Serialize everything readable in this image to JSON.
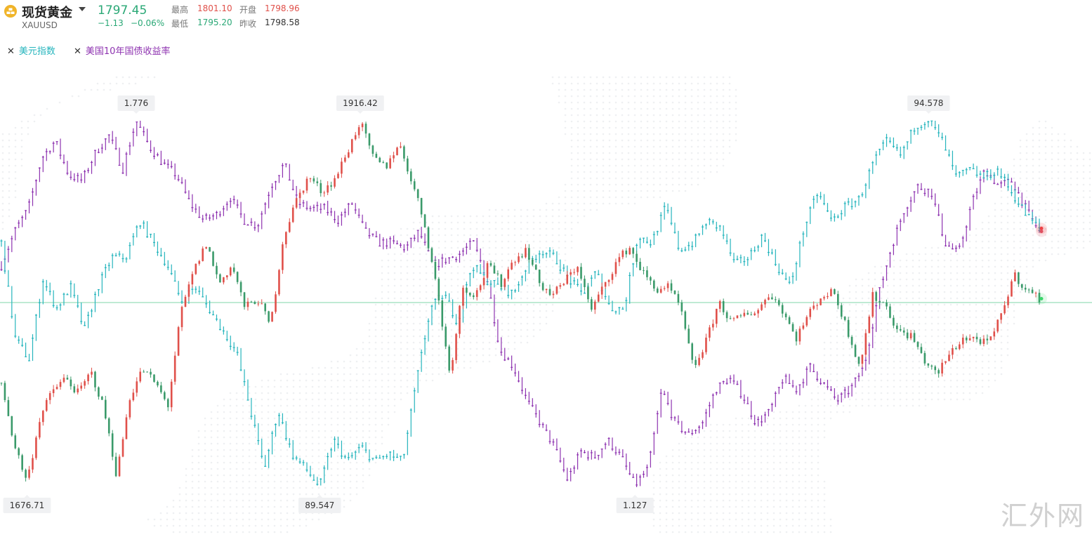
{
  "header": {
    "name": "现货黄金",
    "code": "XAUUSD",
    "price": "1797.45",
    "change": "−1.13",
    "change_pct": "−0.06%",
    "high_label": "最高",
    "high": "1801.10",
    "open_label": "开盘",
    "open": "1798.96",
    "low_label": "最低",
    "low": "1795.20",
    "prev_close_label": "昨收",
    "prev_close": "1798.58"
  },
  "legend": {
    "usd_index": "美元指数",
    "us10y": "美国10年国债收益率"
  },
  "annotations": {
    "bond_high": "1.776",
    "gold_high": "1916.42",
    "usd_high": "94.578",
    "gold_low": "1676.71",
    "usd_low": "89.547",
    "bond_low": "1.127"
  },
  "watermark": "汇外网",
  "colors": {
    "usd": "#26b5bd",
    "bond": "#8e33b0",
    "gold_up": "#e0504a",
    "gold_down": "#3a9a6a",
    "ref_line": "#7fd6a8"
  },
  "chart_data": {
    "type": "line",
    "series": [
      {
        "name": "现货黄金",
        "style": "candlestick",
        "range": [
          1676.71,
          1916.42
        ],
        "values": [
          1745,
          1705,
          1680,
          1722,
          1740,
          1748,
          1738,
          1752,
          1728,
          1684,
          1735,
          1754,
          1745,
          1730,
          1790,
          1818,
          1836,
          1810,
          1822,
          1794,
          1800,
          1782,
          1840,
          1864,
          1880,
          1870,
          1878,
          1896,
          1916,
          1892,
          1886,
          1902,
          1878,
          1850,
          1806,
          1750,
          1808,
          1802,
          1822,
          1810,
          1826,
          1832,
          1810,
          1802,
          1812,
          1822,
          1792,
          1808,
          1824,
          1834,
          1818,
          1806,
          1808,
          1794,
          1754,
          1772,
          1798,
          1784,
          1790,
          1792,
          1804,
          1792,
          1774,
          1790,
          1802,
          1804,
          1780,
          1756,
          1802,
          1796,
          1778,
          1776,
          1760,
          1750,
          1764,
          1774,
          1774,
          1770,
          1788,
          1816,
          1806,
          1800
        ]
      },
      {
        "name": "美元指数",
        "range": [
          89.547,
          94.578
        ],
        "values": [
          92.9,
          91.6,
          91.3,
          92.4,
          92.0,
          92.3,
          91.7,
          92.3,
          92.7,
          92.7,
          93.2,
          92.9,
          92.6,
          92.1,
          92.3,
          92.0,
          91.7,
          91.4,
          90.6,
          89.8,
          90.6,
          90.0,
          89.8,
          89.55,
          90.2,
          89.9,
          90.1,
          89.9,
          90.0,
          89.9,
          91.0,
          92.0,
          92.2,
          91.8,
          92.6,
          92.4,
          92.3,
          92.2,
          92.6,
          92.8,
          92.7,
          92.4,
          92.2,
          92.5,
          92.0,
          92.0,
          93.0,
          92.9,
          93.4,
          92.8,
          92.9,
          93.2,
          93.1,
          92.6,
          92.7,
          93.0,
          92.6,
          92.3,
          93.1,
          93.6,
          93.2,
          93.4,
          93.5,
          94.0,
          94.3,
          94.1,
          94.5,
          94.6,
          94.3,
          93.8,
          93.9,
          93.8,
          93.9,
          93.6,
          93.3,
          93.1
        ]
      },
      {
        "name": "美国10年国债收益率",
        "range": [
          1.127,
          1.776
        ],
        "values": [
          1.52,
          1.58,
          1.62,
          1.71,
          1.74,
          1.68,
          1.67,
          1.72,
          1.75,
          1.69,
          1.776,
          1.73,
          1.7,
          1.68,
          1.63,
          1.6,
          1.61,
          1.64,
          1.6,
          1.59,
          1.66,
          1.7,
          1.63,
          1.62,
          1.62,
          1.6,
          1.63,
          1.58,
          1.56,
          1.56,
          1.55,
          1.58,
          1.52,
          1.53,
          1.54,
          1.56,
          1.5,
          1.37,
          1.34,
          1.28,
          1.24,
          1.2,
          1.14,
          1.19,
          1.18,
          1.21,
          1.18,
          1.13,
          1.16,
          1.3,
          1.24,
          1.22,
          1.24,
          1.3,
          1.32,
          1.29,
          1.24,
          1.26,
          1.32,
          1.3,
          1.34,
          1.31,
          1.28,
          1.3,
          1.34,
          1.46,
          1.55,
          1.62,
          1.66,
          1.65,
          1.56,
          1.54,
          1.63,
          1.69,
          1.66,
          1.67,
          1.62,
          1.58
        ]
      }
    ],
    "annotations": [
      "1.776",
      "1916.42",
      "94.578",
      "1676.71",
      "89.547",
      "1.127"
    ],
    "grid": false,
    "legend_position": "top-left"
  }
}
